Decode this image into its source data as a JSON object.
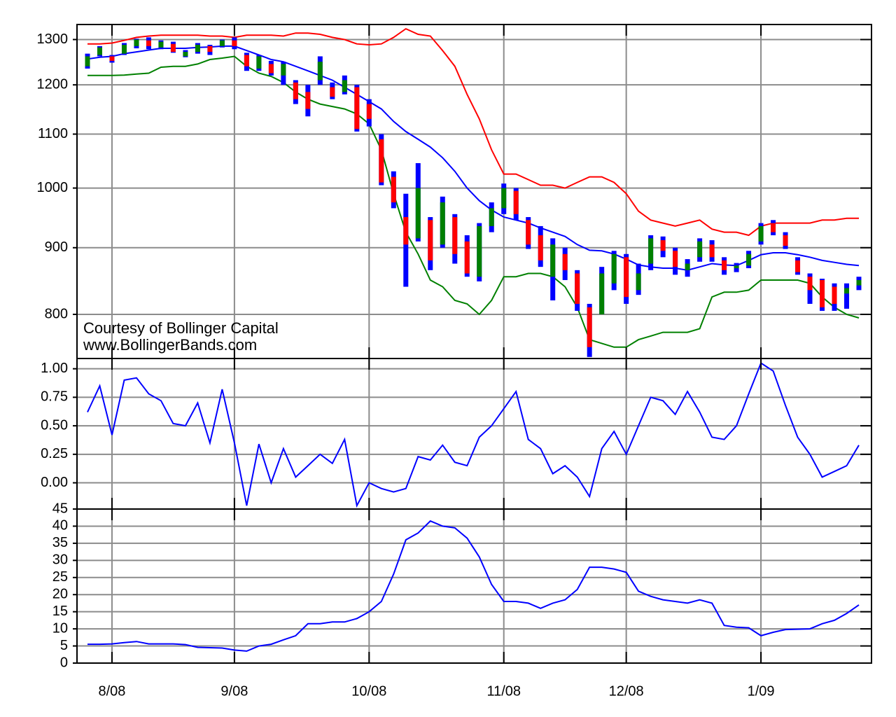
{
  "chart_data": [
    {
      "type": "candlestick",
      "log": true,
      "grid": true,
      "ylim": [
        740,
        1335
      ],
      "yticks": [
        800,
        900,
        1000,
        1100,
        1200,
        1300
      ],
      "annotations": [
        "Courtesy of Bollinger Capital",
        "www.BollingerBands.com"
      ],
      "up_color": "#008000",
      "down_color": "#ff0000",
      "range_color": "#0000ff",
      "open": [
        1240,
        1265,
        1262,
        1268,
        1285,
        1298,
        1282,
        1290,
        1262,
        1272,
        1285,
        1285,
        1298,
        1265,
        1235,
        1245,
        1220,
        1205,
        1185,
        1210,
        1195,
        1185,
        1195,
        1160,
        1090,
        1020,
        950,
        915,
        945,
        905,
        950,
        910,
        855,
        935,
        965,
        995,
        945,
        920,
        855,
        890,
        860,
        810,
        800,
        845,
        885,
        835,
        875,
        912,
        895,
        865,
        885,
        905,
        880,
        868,
        872,
        910,
        940,
        920,
        880,
        855,
        850,
        840,
        830,
        842
      ],
      "high": [
        1268,
        1285,
        1265,
        1292,
        1302,
        1305,
        1298,
        1295,
        1276,
        1292,
        1288,
        1300,
        1305,
        1270,
        1265,
        1252,
        1250,
        1210,
        1200,
        1262,
        1205,
        1220,
        1200,
        1170,
        1100,
        1030,
        990,
        1045,
        950,
        985,
        955,
        920,
        940,
        975,
        1008,
        1000,
        950,
        935,
        915,
        900,
        865,
        815,
        870,
        895,
        890,
        875,
        920,
        918,
        900,
        882,
        915,
        912,
        885,
        876,
        895,
        940,
        945,
        925,
        885,
        860,
        852,
        845,
        845,
        855
      ],
      "low": [
        1235,
        1262,
        1248,
        1265,
        1280,
        1278,
        1278,
        1270,
        1260,
        1268,
        1265,
        1282,
        1278,
        1230,
        1230,
        1220,
        1200,
        1160,
        1135,
        1200,
        1170,
        1180,
        1105,
        1115,
        1005,
        965,
        840,
        910,
        865,
        900,
        875,
        855,
        848,
        925,
        955,
        945,
        898,
        870,
        820,
        850,
        805,
        742,
        800,
        835,
        815,
        828,
        865,
        885,
        858,
        855,
        878,
        878,
        858,
        862,
        868,
        905,
        920,
        898,
        858,
        815,
        805,
        805,
        808,
        835
      ],
      "close": [
        1262,
        1282,
        1252,
        1288,
        1300,
        1285,
        1295,
        1272,
        1272,
        1288,
        1272,
        1298,
        1285,
        1240,
        1262,
        1225,
        1245,
        1170,
        1150,
        1250,
        1175,
        1210,
        1110,
        1130,
        1010,
        975,
        905,
        1000,
        880,
        975,
        890,
        860,
        935,
        965,
        1000,
        955,
        905,
        880,
        905,
        865,
        815,
        755,
        860,
        890,
        825,
        860,
        915,
        895,
        870,
        875,
        910,
        885,
        865,
        872,
        890,
        935,
        925,
        903,
        862,
        835,
        810,
        815,
        838,
        850
      ],
      "series": [
        {
          "color": "#ff0000",
          "values": [
            1290,
            1290,
            1292,
            1298,
            1305,
            1308,
            1310,
            1310,
            1310,
            1310,
            1308,
            1308,
            1305,
            1310,
            1310,
            1310,
            1308,
            1315,
            1315,
            1312,
            1305,
            1300,
            1290,
            1288,
            1290,
            1305,
            1325,
            1312,
            1308,
            1275,
            1240,
            1180,
            1130,
            1070,
            1025,
            1025,
            1015,
            1005,
            1005,
            1000,
            1010,
            1020,
            1020,
            1010,
            990,
            960,
            945,
            940,
            935,
            940,
            945,
            930,
            925,
            925,
            920,
            935,
            940,
            940,
            940,
            940,
            945,
            945,
            948,
            948
          ]
        },
        {
          "color": "#0000ff",
          "values": [
            1256,
            1260,
            1262,
            1268,
            1272,
            1276,
            1280,
            1280,
            1280,
            1282,
            1283,
            1285,
            1285,
            1275,
            1265,
            1255,
            1250,
            1240,
            1230,
            1220,
            1210,
            1195,
            1180,
            1165,
            1150,
            1125,
            1105,
            1090,
            1075,
            1055,
            1030,
            1000,
            978,
            962,
            950,
            945,
            940,
            932,
            925,
            918,
            905,
            896,
            895,
            890,
            882,
            873,
            870,
            868,
            868,
            865,
            870,
            875,
            873,
            872,
            880,
            889,
            892,
            892,
            889,
            885,
            880,
            877,
            874,
            872
          ]
        },
        {
          "color": "#008000",
          "values": [
            1220,
            1220,
            1220,
            1221,
            1223,
            1225,
            1238,
            1240,
            1240,
            1245,
            1255,
            1258,
            1262,
            1240,
            1225,
            1218,
            1205,
            1185,
            1170,
            1160,
            1155,
            1150,
            1140,
            1120,
            1070,
            990,
            925,
            890,
            850,
            840,
            820,
            815,
            800,
            820,
            855,
            855,
            860,
            860,
            855,
            840,
            810,
            765,
            760,
            755,
            755,
            765,
            770,
            775,
            775,
            775,
            780,
            825,
            832,
            832,
            835,
            850,
            850,
            850,
            850,
            845,
            825,
            810,
            800,
            795
          ]
        }
      ]
    },
    {
      "type": "line",
      "grid": true,
      "ylim": [
        -0.23,
        1.09
      ],
      "yticks": [
        {
          "value": 0,
          "label": "0.00"
        },
        {
          "value": 0.25,
          "label": "0.25"
        },
        {
          "value": 0.5,
          "label": "0.50"
        },
        {
          "value": 0.75,
          "label": "0.75"
        },
        {
          "value": 1,
          "label": "1.00"
        }
      ],
      "series": [
        {
          "color": "#0000ff",
          "values": [
            0.62,
            0.85,
            0.42,
            0.9,
            0.92,
            0.78,
            0.72,
            0.52,
            0.5,
            0.7,
            0.35,
            0.82,
            0.35,
            -0.2,
            0.34,
            0,
            0.3,
            0.05,
            0.15,
            0.25,
            0.17,
            0.38,
            -0.2,
            0,
            -0.05,
            -0.08,
            -0.05,
            0.23,
            0.2,
            0.33,
            0.18,
            0.15,
            0.4,
            0.5,
            0.65,
            0.8,
            0.38,
            0.3,
            0.08,
            0.15,
            0.05,
            -0.12,
            0.3,
            0.45,
            0.25,
            0.5,
            0.75,
            0.72,
            0.6,
            0.8,
            0.62,
            0.4,
            0.38,
            0.5,
            0.78,
            1.05,
            0.98,
            0.68,
            0.4,
            0.25,
            0.05,
            0.1,
            0.15,
            0.33
          ]
        }
      ]
    },
    {
      "type": "line",
      "grid": true,
      "ylim": [
        0,
        45
      ],
      "yticks": [
        0,
        5,
        10,
        15,
        20,
        25,
        30,
        35,
        40,
        45
      ],
      "categories": [
        null,
        null,
        "8/08",
        null,
        null,
        null,
        null,
        null,
        null,
        null,
        null,
        null,
        "9/08",
        null,
        null,
        null,
        null,
        null,
        null,
        null,
        null,
        null,
        null,
        "10/08",
        null,
        null,
        null,
        null,
        null,
        null,
        null,
        null,
        null,
        null,
        "11/08",
        null,
        null,
        null,
        null,
        null,
        null,
        null,
        null,
        null,
        "12/08",
        null,
        null,
        null,
        null,
        null,
        null,
        null,
        null,
        null,
        null,
        "1/09",
        null,
        null,
        null,
        null,
        null,
        null,
        null,
        null
      ],
      "series": [
        {
          "color": "#0000ff",
          "values": [
            5.5,
            5.5,
            5.6,
            6.0,
            6.3,
            5.6,
            5.6,
            5.6,
            5.4,
            4.6,
            4.5,
            4.4,
            3.8,
            3.5,
            5.0,
            5.5,
            6.8,
            8.0,
            11.5,
            11.5,
            12.0,
            12.0,
            13.0,
            15.0,
            18.0,
            26.0,
            36.0,
            38.0,
            41.5,
            40.0,
            39.5,
            36.5,
            31.0,
            23.0,
            18.0,
            18.0,
            17.5,
            16.0,
            17.5,
            18.5,
            21.5,
            28.0,
            28.0,
            27.5,
            26.5,
            21.0,
            19.5,
            18.5,
            18.0,
            17.5,
            18.5,
            17.5,
            11.0,
            10.5,
            10.3,
            8.0,
            9.0,
            9.8,
            9.9,
            10.0,
            11.5,
            12.5,
            14.5,
            17.0
          ]
        }
      ]
    }
  ]
}
